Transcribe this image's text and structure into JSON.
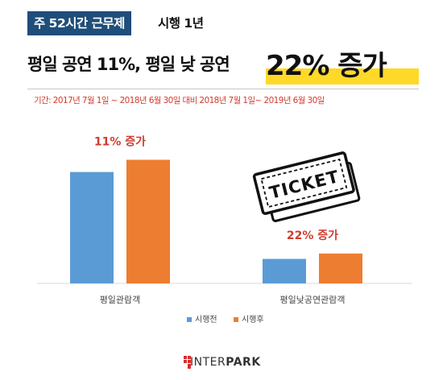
{
  "header": {
    "tag": "주 52시간 근무제",
    "tag_suffix": "시행 1년",
    "headline": "평일 공연 11%, 평일 낮 공연",
    "highlight": "22% 증가",
    "period": "기간:  2017년 7월 1일 ~ 2018년 6월 30일 대비 2018년 7월 1일~ 2019년 6월 30일"
  },
  "colors": {
    "series_before": "#5b9bd5",
    "series_after": "#ed7d31",
    "annotation": "#d13b2e",
    "tag_bg": "#1f4e79",
    "highlight": "#ffd928"
  },
  "icons": [
    "ticket-icon",
    "interpark-logo-icon"
  ],
  "chart_data": {
    "type": "bar",
    "categories": [
      "평일관람객",
      "평일낮공연관람객"
    ],
    "series": [
      {
        "name": "시행전",
        "values": [
          100,
          22
        ]
      },
      {
        "name": "시행후",
        "values": [
          111,
          26.8
        ]
      }
    ],
    "annotations": [
      "11% 증가",
      "22% 증가"
    ],
    "ylim": [
      0,
      120
    ],
    "legend_position": "bottom",
    "grid": false
  },
  "brand": {
    "name_light": "INTER",
    "name_bold": "PARK"
  }
}
